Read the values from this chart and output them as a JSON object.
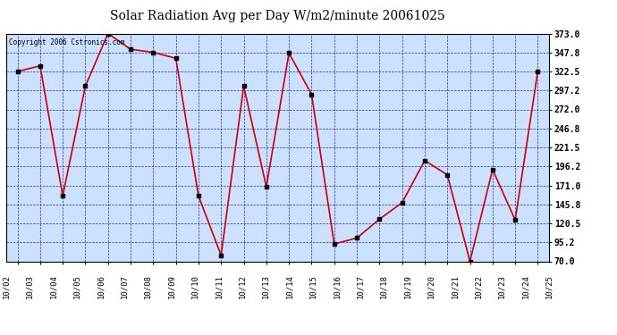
{
  "title": "Solar Radiation Avg per Day W/m2/minute 20061025",
  "copyright": "Copyright 2006 Cstronics.com",
  "x_labels": [
    "10/02",
    "10/03",
    "10/04",
    "10/05",
    "10/06",
    "10/07",
    "10/08",
    "10/09",
    "10/10",
    "10/11",
    "10/12",
    "10/13",
    "10/14",
    "10/15",
    "10/16",
    "10/17",
    "10/18",
    "10/19",
    "10/20",
    "10/21",
    "10/22",
    "10/23",
    "10/24",
    "10/25"
  ],
  "y_values": [
    322.5,
    330.0,
    157.0,
    303.0,
    373.0,
    352.0,
    348.0,
    340.0,
    157.0,
    78.0,
    303.0,
    169.0,
    347.0,
    292.0,
    93.0,
    101.0,
    126.0,
    148.0,
    204.0,
    185.0,
    70.0,
    192.0,
    125.0,
    323.0
  ],
  "ylim": [
    70.0,
    373.0
  ],
  "yticks": [
    70.0,
    95.2,
    120.5,
    145.8,
    171.0,
    196.2,
    221.5,
    246.8,
    272.0,
    297.2,
    322.5,
    347.8,
    373.0
  ],
  "line_color": "#cc0000",
  "marker_color": "#000000",
  "bg_color": "#cce0ff",
  "grid_color": "#0000bb",
  "title_color": "#000000",
  "axes_label_color": "#000000",
  "copyright_color": "#000000",
  "outer_bg": "#ffffff"
}
